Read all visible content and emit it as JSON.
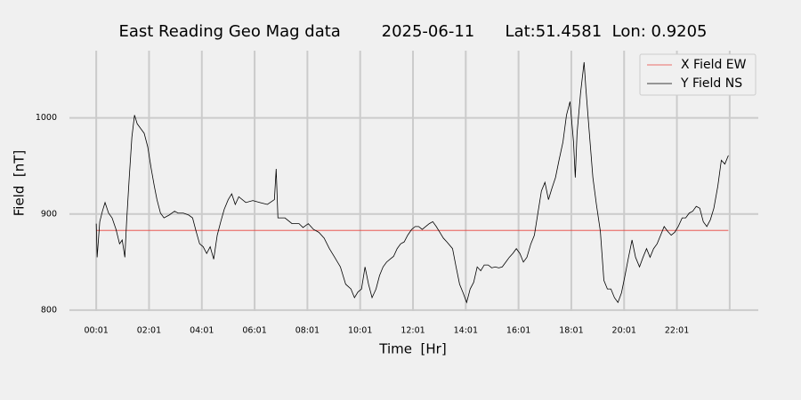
{
  "chart_data": {
    "type": "line",
    "title": "East Reading Geo Mag data        2025-06-11      Lat:51.4581  Lon: 0.9205",
    "x_label": "Time  [Hr]",
    "y_label": "Field  [nT]",
    "xlim": [
      -60,
      1506
    ],
    "ylim": [
      799,
      1070
    ],
    "xticks": [
      {
        "value": 1,
        "label": "00:01"
      },
      {
        "value": 121,
        "label": "02:01"
      },
      {
        "value": 241,
        "label": "04:01"
      },
      {
        "value": 361,
        "label": "06:01"
      },
      {
        "value": 481,
        "label": "08:01"
      },
      {
        "value": 601,
        "label": "10:01"
      },
      {
        "value": 721,
        "label": "12:01"
      },
      {
        "value": 841,
        "label": "14:01"
      },
      {
        "value": 961,
        "label": "16:01"
      },
      {
        "value": 1081,
        "label": "18:01"
      },
      {
        "value": 1201,
        "label": "20:01"
      },
      {
        "value": 1321,
        "label": "22:01"
      },
      {
        "value": 1441,
        "label": null
      }
    ],
    "yticks": [
      800,
      900,
      1000
    ],
    "grid": true,
    "legend": "upper right",
    "series": [
      {
        "name": "X Field EW",
        "color": "#e8413a",
        "x": [
          1,
          1438
        ],
        "values": [
          883,
          883
        ]
      },
      {
        "name": "Y Field NS",
        "color": "#000000",
        "x": [
          1,
          3,
          9,
          15,
          21,
          29,
          37,
          46,
          54,
          60,
          66,
          70,
          76,
          82,
          88,
          94,
          102,
          110,
          118,
          126,
          133,
          139,
          147,
          155,
          167,
          179,
          187,
          199,
          211,
          220,
          228,
          236,
          244,
          252,
          260,
          268,
          276,
          284,
          292,
          301,
          309,
          317,
          325,
          341,
          357,
          373,
          390,
          406,
          410,
          414,
          430,
          446,
          462,
          471,
          483,
          495,
          507,
          519,
          531,
          543,
          556,
          568,
          580,
          588,
          596,
          604,
          612,
          620,
          628,
          637,
          645,
          653,
          661,
          669,
          677,
          685,
          693,
          701,
          709,
          718,
          726,
          734,
          742,
          750,
          758,
          766,
          774,
          782,
          790,
          798,
          811,
          819,
          827,
          835,
          843,
          851,
          859,
          867,
          875,
          883,
          892,
          900,
          908,
          916,
          924,
          932,
          940,
          948,
          956,
          964,
          972,
          980,
          989,
          997,
          1005,
          1013,
          1021,
          1029,
          1037,
          1045,
          1053,
          1062,
          1070,
          1078,
          1086,
          1090,
          1094,
          1102,
          1110,
          1114,
          1122,
          1130,
          1138,
          1147,
          1155,
          1163,
          1171,
          1179,
          1187,
          1195,
          1203,
          1211,
          1219,
          1227,
          1236,
          1244,
          1252,
          1260,
          1268,
          1276,
          1284,
          1292,
          1300,
          1308,
          1316,
          1324,
          1333,
          1341,
          1349,
          1357,
          1365,
          1373,
          1381,
          1389,
          1397,
          1405,
          1414,
          1422,
          1430,
          1438
        ],
        "values": [
          890,
          855,
          892,
          903,
          912,
          901,
          896,
          884,
          869,
          873,
          855,
          892,
          938,
          980,
          1003,
          994,
          989,
          984,
          970,
          947,
          929,
          915,
          901,
          896,
          899,
          903,
          901,
          901,
          899,
          896,
          882,
          869,
          866,
          859,
          866,
          853,
          878,
          892,
          905,
          915,
          921,
          910,
          918,
          912,
          914,
          912,
          910,
          915,
          947,
          896,
          896,
          890,
          890,
          886,
          890,
          884,
          881,
          875,
          864,
          855,
          845,
          827,
          822,
          813,
          819,
          822,
          845,
          827,
          813,
          822,
          836,
          845,
          850,
          853,
          856,
          864,
          869,
          871,
          878,
          884,
          887,
          887,
          884,
          887,
          890,
          892,
          887,
          881,
          875,
          871,
          864,
          845,
          827,
          818,
          808,
          822,
          829,
          845,
          841,
          847,
          847,
          844,
          845,
          844,
          845,
          850,
          855,
          859,
          864,
          859,
          850,
          855,
          869,
          878,
          901,
          924,
          933,
          915,
          927,
          938,
          956,
          975,
          1003,
          1017,
          975,
          938,
          984,
          1026,
          1058,
          1031,
          984,
          938,
          910,
          882,
          831,
          822,
          822,
          813,
          808,
          818,
          836,
          855,
          873,
          855,
          845,
          855,
          864,
          855,
          864,
          869,
          878,
          887,
          882,
          878,
          881,
          887,
          896,
          896,
          901,
          903,
          908,
          906,
          892,
          887,
          894,
          906,
          929,
          956,
          952,
          961
        ]
      }
    ]
  }
}
